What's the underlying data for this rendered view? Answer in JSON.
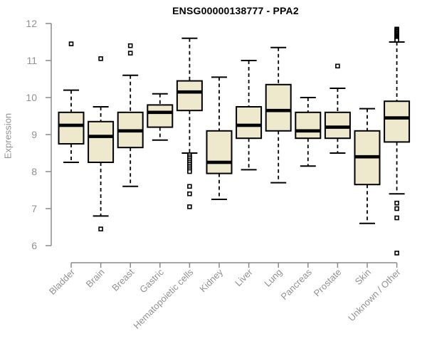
{
  "chart_data": {
    "type": "boxplot",
    "title": "ENSG00000138777 - PPA2",
    "ylabel": "Expression",
    "xlabel": "",
    "ylim": [
      6,
      12
    ],
    "yticks": [
      6,
      7,
      8,
      9,
      10,
      11,
      12
    ],
    "grid": "off",
    "legend": "none",
    "colors": {
      "box_fill": "#EEE8CD",
      "box_border": "#000000",
      "median": "#000000",
      "whisker": "#000000",
      "outlier_fill": "#ffffff",
      "outlier_border": "#000000",
      "axis_line": "#8A8A8A",
      "axis_text": "#919191",
      "title_text": "#000000"
    },
    "categories": [
      "Bladder",
      "Brain",
      "Breast",
      "Gastric",
      "Hematopoietic cells",
      "Kidney",
      "Liver",
      "Lung",
      "Pancreas",
      "Prostate",
      "Skin",
      "Unknown / Other"
    ],
    "series": [
      {
        "label": "Bladder",
        "whisker_low": 8.25,
        "q1": 8.75,
        "median": 9.25,
        "q3": 9.6,
        "whisker_high": 10.2,
        "outliers": [
          11.45
        ]
      },
      {
        "label": "Brain",
        "whisker_low": 6.8,
        "q1": 8.25,
        "median": 8.95,
        "q3": 9.35,
        "whisker_high": 9.75,
        "outliers": [
          11.05,
          6.45
        ]
      },
      {
        "label": "Breast",
        "whisker_low": 7.6,
        "q1": 8.65,
        "median": 9.1,
        "q3": 9.6,
        "whisker_high": 10.6,
        "outliers": [
          11.4,
          11.2
        ]
      },
      {
        "label": "Gastric",
        "whisker_low": 8.85,
        "q1": 9.2,
        "median": 9.6,
        "q3": 9.8,
        "whisker_high": 10.1,
        "outliers": []
      },
      {
        "label": "Hematopoietic cells",
        "whisker_low": 8.5,
        "q1": 9.65,
        "median": 10.15,
        "q3": 10.45,
        "whisker_high": 11.6,
        "outliers": [
          8.45,
          8.4,
          8.35,
          8.3,
          8.25,
          8.2,
          8.15,
          8.1,
          8.05,
          8.0,
          7.6,
          7.4,
          7.05
        ]
      },
      {
        "label": "Kidney",
        "whisker_low": 7.25,
        "q1": 7.95,
        "median": 8.25,
        "q3": 9.1,
        "whisker_high": 10.55,
        "outliers": []
      },
      {
        "label": "Liver",
        "whisker_low": 8.05,
        "q1": 8.9,
        "median": 9.25,
        "q3": 9.75,
        "whisker_high": 11.0,
        "outliers": []
      },
      {
        "label": "Lung",
        "whisker_low": 7.7,
        "q1": 9.1,
        "median": 9.65,
        "q3": 10.35,
        "whisker_high": 11.35,
        "outliers": []
      },
      {
        "label": "Pancreas",
        "whisker_low": 8.15,
        "q1": 8.9,
        "median": 9.1,
        "q3": 9.6,
        "whisker_high": 10.0,
        "outliers": []
      },
      {
        "label": "Prostate",
        "whisker_low": 8.5,
        "q1": 8.9,
        "median": 9.2,
        "q3": 9.6,
        "whisker_high": 10.25,
        "outliers": [
          10.85
        ]
      },
      {
        "label": "Skin",
        "whisker_low": 6.6,
        "q1": 7.65,
        "median": 8.4,
        "q3": 9.1,
        "whisker_high": 9.7,
        "outliers": []
      },
      {
        "label": "Unknown / Other",
        "whisker_low": 7.4,
        "q1": 8.8,
        "median": 9.45,
        "q3": 9.9,
        "whisker_high": 11.5,
        "outliers": [
          11.85,
          11.82,
          11.79,
          11.76,
          11.73,
          11.7,
          11.67,
          11.64,
          11.61,
          11.58,
          11.55,
          7.15,
          7.0,
          6.75,
          5.8
        ]
      }
    ]
  }
}
